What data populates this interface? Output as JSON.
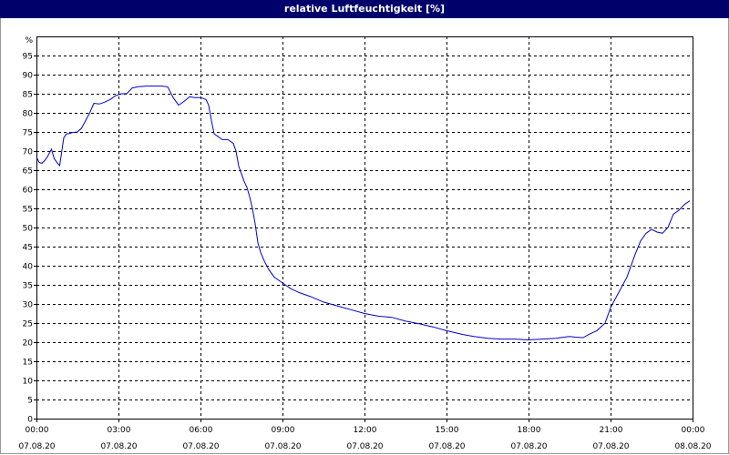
{
  "title": "relative Luftfeuchtigkeit [%]",
  "chart_data": {
    "type": "line",
    "title": "relative Luftfeuchtigkeit [%]",
    "ylabel": "%",
    "xlabel": "",
    "ylim": [
      0,
      100
    ],
    "y_ticks": [
      0,
      5,
      10,
      15,
      20,
      25,
      30,
      35,
      40,
      45,
      50,
      55,
      60,
      65,
      70,
      75,
      80,
      85,
      90,
      95
    ],
    "xlim_hours": [
      0,
      24
    ],
    "x_ticks": [
      {
        "time": "00:00",
        "date": "07.08.20"
      },
      {
        "time": "03:00",
        "date": "07.08.20"
      },
      {
        "time": "06:00",
        "date": "07.08.20"
      },
      {
        "time": "09:00",
        "date": "07.08.20"
      },
      {
        "time": "12:00",
        "date": "07.08.20"
      },
      {
        "time": "15:00",
        "date": "07.08.20"
      },
      {
        "time": "18:00",
        "date": "07.08.20"
      },
      {
        "time": "21:00",
        "date": "07.08.20"
      },
      {
        "time": "00:00",
        "date": "08.08.20"
      }
    ],
    "grid": true,
    "line_color": "#0000cc",
    "series": [
      {
        "x": [
          0.0,
          0.1,
          0.2,
          0.3,
          0.4,
          0.55,
          0.65,
          0.75,
          0.85,
          1.0,
          1.1,
          1.2,
          1.3,
          1.5,
          1.65,
          1.8,
          1.95,
          2.1,
          2.3,
          2.5,
          2.7,
          2.9,
          3.1,
          3.3,
          3.5,
          3.7,
          4.0,
          4.3,
          4.6,
          4.8,
          5.0,
          5.2,
          5.4,
          5.6,
          5.8,
          6.0,
          6.2,
          6.3,
          6.4,
          6.5,
          6.6,
          6.8,
          7.0,
          7.2,
          7.3,
          7.4,
          7.5,
          7.6,
          7.7,
          7.8,
          7.9,
          8.0,
          8.1,
          8.2,
          8.35,
          8.5,
          8.7,
          9.0,
          9.3,
          9.6,
          10.0,
          10.5,
          11.0,
          11.5,
          12.0,
          12.5,
          13.0,
          13.5,
          14.0,
          14.5,
          15.0,
          15.3,
          15.6,
          16.0,
          16.5,
          17.0,
          17.5,
          18.0,
          18.5,
          19.0,
          19.3,
          19.5,
          19.7,
          20.0,
          20.2,
          20.5,
          20.8,
          21.0,
          21.3,
          21.6,
          21.9,
          22.1,
          22.3,
          22.5,
          22.7,
          22.9,
          23.1,
          23.3,
          23.5,
          23.7,
          23.9
        ],
        "y": [
          68.5,
          67.0,
          66.8,
          67.5,
          68.5,
          70.5,
          68.0,
          67.0,
          66.2,
          73.5,
          74.5,
          74.6,
          74.8,
          75.0,
          76.0,
          78.0,
          80.0,
          82.5,
          82.3,
          82.8,
          83.5,
          84.5,
          85.0,
          85.0,
          86.5,
          86.8,
          87.0,
          87.0,
          87.0,
          86.8,
          84.0,
          82.0,
          83.0,
          84.2,
          84.0,
          84.0,
          83.5,
          82.0,
          78.0,
          74.5,
          74.0,
          73.0,
          73.0,
          72.0,
          70.0,
          66.0,
          64.0,
          62.0,
          60.5,
          58.0,
          55.0,
          51.0,
          46.0,
          43.5,
          41.0,
          39.0,
          37.0,
          35.5,
          34.0,
          33.0,
          32.0,
          30.5,
          29.5,
          28.5,
          27.5,
          26.8,
          26.5,
          25.5,
          24.8,
          24.0,
          23.0,
          22.5,
          22.0,
          21.5,
          21.0,
          20.8,
          20.8,
          20.6,
          20.8,
          21.0,
          21.3,
          21.5,
          21.3,
          21.2,
          22.0,
          23.0,
          25.0,
          29.0,
          33.0,
          37.0,
          43.0,
          46.5,
          48.5,
          49.5,
          48.8,
          48.5,
          50.0,
          53.5,
          54.5,
          56.0,
          57.0
        ]
      }
    ]
  }
}
